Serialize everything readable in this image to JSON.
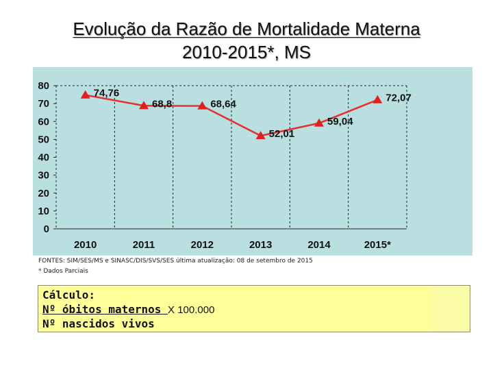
{
  "title": {
    "line1": "Evolução da Razão de Mortalidade Materna",
    "line2": "2010-2015*, MS"
  },
  "chart_data": {
    "type": "line",
    "categories": [
      "2010",
      "2011",
      "2012",
      "2013",
      "2014",
      "2015*"
    ],
    "values": [
      74.76,
      68.8,
      68.64,
      52.01,
      59.04,
      72.07
    ],
    "data_labels": [
      "74,76",
      "68,8",
      "68,64",
      "52,01",
      "59,04",
      "72,07"
    ],
    "y_ticks": [
      "0",
      "10",
      "20",
      "30",
      "40",
      "50",
      "60",
      "70",
      "80"
    ],
    "ylim": [
      0,
      80
    ],
    "grid": "dashed vertical lines between categories",
    "colors": {
      "plot_background": "#b9dfe0",
      "line": "#e53030",
      "marker": "#e02020"
    }
  },
  "source": {
    "line1": "FONTES: SIM/SES/MS e SINASC/DIS/SVS/SES última atualização: 08 de setembro de 2015",
    "line2": "* Dados Parciais"
  },
  "calculo": {
    "heading": "Cálculo:",
    "numerator": "Nº óbitos maternos",
    "multiplier": "X 100.000",
    "denominator": "Nº nascidos vivos",
    "background": "#ffff99"
  }
}
